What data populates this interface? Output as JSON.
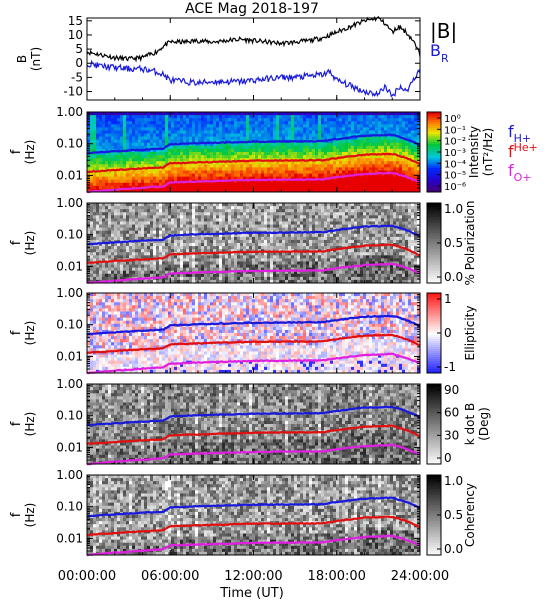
{
  "title": "ACE Mag 2018-197",
  "time_axis": {
    "label": "Time (UT)",
    "ticks": [
      "00:00:00",
      "06:00:00",
      "12:00:00",
      "18:00:00",
      "24:00:00"
    ],
    "tick_hours": [
      0,
      6,
      12,
      18,
      24
    ],
    "range_hours": [
      0,
      24
    ]
  },
  "legend": {
    "bmag": {
      "label": "|B|",
      "color": "#000000"
    },
    "br": {
      "label": "B",
      "sub": "R",
      "color": "#1a1adc"
    },
    "gyro": [
      {
        "label": "f",
        "sub": "H+",
        "color": "#1a1adc"
      },
      {
        "label": "f",
        "sub": "He+",
        "color": "#e01010"
      },
      {
        "label": "f",
        "sub": "O+",
        "color": "#e020e0"
      }
    ]
  },
  "colors": {
    "bmag": "#000000",
    "br": "#1a1adc",
    "fH": "#1a1adc",
    "fHe": "#e01010",
    "fO": "#e020e0"
  },
  "chart_data": [
    {
      "type": "line",
      "panel": "magnetic-field",
      "ylabel": "B",
      "yunit": "(nT)",
      "ylim": [
        -13,
        16
      ],
      "yticks": [
        "15",
        "10",
        "5",
        "0",
        "-5",
        "-10"
      ],
      "ytick_values": [
        15,
        10,
        5,
        0,
        -5,
        -10
      ],
      "x_hours": [
        0,
        1,
        2,
        3,
        4,
        5,
        5.5,
        6,
        7,
        8,
        9,
        10,
        11,
        12,
        13,
        14,
        15,
        16,
        17,
        17.5,
        18,
        19,
        20,
        21,
        21.5,
        22,
        22.5,
        23,
        23.5,
        24
      ],
      "series": [
        {
          "name": "|B|",
          "color": "#000000",
          "values": [
            4,
            3,
            2,
            1.5,
            2,
            4,
            6,
            7.5,
            7.5,
            8,
            7.5,
            8,
            8.5,
            8,
            7.5,
            7,
            7.5,
            8,
            9,
            10,
            11,
            13,
            15,
            16,
            14,
            11,
            13,
            11,
            8,
            3
          ]
        },
        {
          "name": "B",
          "color": "#1a1adc",
          "values": [
            0,
            -1,
            -1.5,
            -2,
            -2,
            -3,
            -4,
            -6,
            -6.5,
            -7,
            -6.5,
            -6.5,
            -6.5,
            -6,
            -5.5,
            -5,
            -5,
            -4.5,
            -4,
            -3,
            -6,
            -8,
            -10,
            -11,
            -8,
            -12,
            -8,
            -10,
            -6,
            -2
          ]
        }
      ]
    },
    {
      "type": "heatmap",
      "panel": "intensity",
      "ylabel": "f",
      "yunit": "(Hz)",
      "yscale": "log",
      "ylim": [
        0.003,
        1.0
      ],
      "yticks": [
        "1.00",
        "0.10",
        "0.01"
      ],
      "ytick_values": [
        1.0,
        0.1,
        0.01
      ],
      "colorbar": {
        "label": "Intensity",
        "unit": "(nT²/Hz)",
        "ticks": [
          "10⁰",
          "10⁻¹",
          "10⁻²",
          "10⁻³",
          "10⁻⁴",
          "10⁻⁵",
          "10⁻⁶"
        ],
        "tick_exponents": [
          0,
          -1,
          -2,
          -3,
          -4,
          -5,
          -6
        ],
        "scale": "rainbow"
      },
      "x_hours": [
        0,
        5.5,
        6,
        7,
        12,
        17,
        18,
        20,
        22,
        23,
        24
      ],
      "series": [
        {
          "name": "f",
          "sub": "H+",
          "values": [
            0.05,
            0.07,
            0.095,
            0.1,
            0.115,
            0.12,
            0.14,
            0.18,
            0.19,
            0.14,
            0.09
          ]
        },
        {
          "name": "f",
          "sub": "He+",
          "values": [
            0.013,
            0.018,
            0.024,
            0.025,
            0.029,
            0.03,
            0.035,
            0.045,
            0.048,
            0.035,
            0.022
          ]
        },
        {
          "name": "f",
          "sub": "O+",
          "values": [
            0.003,
            0.0045,
            0.006,
            0.0062,
            0.0072,
            0.0075,
            0.0088,
            0.011,
            0.012,
            0.009,
            0.006
          ]
        }
      ]
    },
    {
      "type": "heatmap",
      "panel": "polarization",
      "ylabel": "f",
      "yunit": "(Hz)",
      "yscale": "log",
      "ylim": [
        0.003,
        1.0
      ],
      "yticks": [
        "1.00",
        "0.10",
        "0.01"
      ],
      "ytick_values": [
        1.0,
        0.1,
        0.01
      ],
      "colorbar": {
        "label": "% Polarization",
        "unit": "",
        "ticks": [
          "1.0",
          "0.5",
          "0.0"
        ],
        "tick_values": [
          1.0,
          0.5,
          0.0
        ],
        "scale": "gray"
      }
    },
    {
      "type": "heatmap",
      "panel": "ellipticity",
      "ylabel": "f",
      "yunit": "(Hz)",
      "yscale": "log",
      "ylim": [
        0.003,
        1.0
      ],
      "yticks": [
        "1.00",
        "0.10",
        "0.01"
      ],
      "ytick_values": [
        1.0,
        0.1,
        0.01
      ],
      "colorbar": {
        "label": "Ellipticity",
        "unit": "",
        "ticks": [
          "1",
          "0",
          "-1"
        ],
        "tick_values": [
          1,
          0,
          -1
        ],
        "scale": "bwr"
      }
    },
    {
      "type": "heatmap",
      "panel": "wave-normal-angle",
      "ylabel": "f",
      "yunit": "(Hz)",
      "yscale": "log",
      "ylim": [
        0.003,
        1.0
      ],
      "yticks": [
        "1.00",
        "0.10",
        "0.01"
      ],
      "ytick_values": [
        1.0,
        0.1,
        0.01
      ],
      "colorbar": {
        "label": "k dot B",
        "unit": "(Deg)",
        "ticks": [
          "90",
          "60",
          "30",
          "0"
        ],
        "tick_values": [
          90,
          60,
          30,
          0
        ],
        "scale": "gray"
      }
    },
    {
      "type": "heatmap",
      "panel": "coherency",
      "ylabel": "f",
      "yunit": "(Hz)",
      "yscale": "log",
      "ylim": [
        0.003,
        1.0
      ],
      "yticks": [
        "1.00",
        "0.10",
        "0.01"
      ],
      "ytick_values": [
        1.0,
        0.1,
        0.01
      ],
      "colorbar": {
        "label": "Coherency",
        "unit": "",
        "ticks": [
          "1.0",
          "0.5",
          "0.0"
        ],
        "tick_values": [
          1.0,
          0.5,
          0.0
        ],
        "scale": "gray"
      }
    }
  ]
}
